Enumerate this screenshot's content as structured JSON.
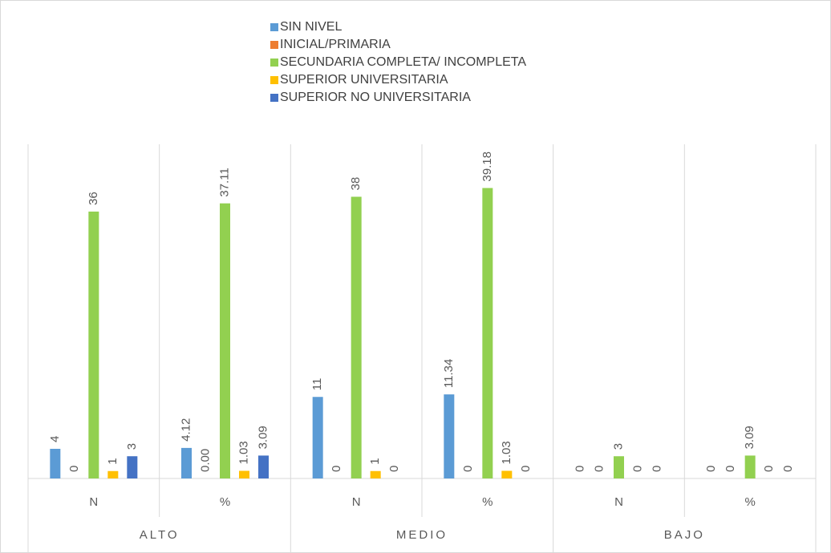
{
  "chart_data": {
    "type": "bar",
    "categories": [
      "N",
      "%",
      "N",
      "%",
      "N",
      "%"
    ],
    "groups": [
      "ALTO",
      "MEDIO",
      "BAJO"
    ],
    "series": [
      {
        "name": "SIN NIVEL",
        "color": "#5b9bd5",
        "values": [
          4,
          4.12,
          11,
          11.34,
          0,
          0
        ],
        "value_labels": [
          "4",
          "4.12",
          "11",
          "11.34",
          "0",
          "0"
        ]
      },
      {
        "name": "INICIAL/PRIMARIA",
        "color": "#ed7d31",
        "values": [
          0,
          0,
          0,
          0,
          0,
          0
        ],
        "value_labels": [
          "0",
          "0.00",
          "0",
          "0",
          "0",
          "0"
        ]
      },
      {
        "name": "SECUNDARIA COMPLETA/ INCOMPLETA",
        "color": "#92d050",
        "values": [
          36,
          37.11,
          38,
          39.18,
          3,
          3.09
        ],
        "value_labels": [
          "36",
          "37.11",
          "38",
          "39.18",
          "3",
          "3.09"
        ]
      },
      {
        "name": "SUPERIOR UNIVERSITARIA",
        "color": "#ffc000",
        "values": [
          1,
          1.03,
          1,
          1.03,
          0,
          0
        ],
        "value_labels": [
          "1",
          "1.03",
          "1",
          "1.03",
          "0",
          "0"
        ]
      },
      {
        "name": "SUPERIOR NO UNIVERSITARIA",
        "color": "#4472c4",
        "values": [
          3,
          3.09,
          0,
          0,
          0,
          0
        ],
        "value_labels": [
          "3",
          "3.09",
          "0",
          "0",
          "0",
          "0"
        ]
      }
    ]
  }
}
